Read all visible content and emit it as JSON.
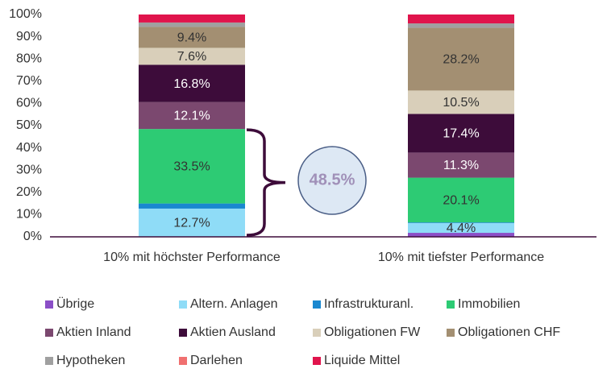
{
  "chart_data": {
    "type": "stacked-bar",
    "categories": [
      "10% mit höchster Performance",
      "10% mit tiefster Performance"
    ],
    "ylim": [
      0,
      100
    ],
    "yticks": [
      {
        "value": 0,
        "label": "0%"
      },
      {
        "value": 10,
        "label": "10%"
      },
      {
        "value": 20,
        "label": "20%"
      },
      {
        "value": 30,
        "label": "30%"
      },
      {
        "value": 40,
        "label": "40%"
      },
      {
        "value": 50,
        "label": "50%"
      },
      {
        "value": 60,
        "label": "60%"
      },
      {
        "value": 70,
        "label": "70%"
      },
      {
        "value": 80,
        "label": "80%"
      },
      {
        "value": 90,
        "label": "90%"
      },
      {
        "value": 100,
        "label": "100%"
      }
    ],
    "annotation": "48.5%",
    "series": [
      {
        "name": "Übrige",
        "color": "#8b4fc7",
        "values": [
          0,
          1.8
        ],
        "value_labels": [
          null,
          null
        ]
      },
      {
        "name": "Altern. Anlagen",
        "color": "#8fdcf7",
        "values": [
          12.7,
          4.4
        ],
        "value_labels": [
          "12.7%",
          "4.4%"
        ]
      },
      {
        "name": "Infrastrukturanl.",
        "color": "#1a88d0",
        "values": [
          2.3,
          0.3
        ],
        "value_labels": [
          null,
          null
        ]
      },
      {
        "name": "Immobilien",
        "color": "#2dcb74",
        "values": [
          33.5,
          20.1
        ],
        "value_labels": [
          "33.5%",
          "20.1%"
        ]
      },
      {
        "name": "Aktien Inland",
        "color": "#7b486f",
        "values": [
          12.1,
          11.3
        ],
        "value_labels": [
          "12.1%",
          "11.3%"
        ]
      },
      {
        "name": "Aktien Ausland",
        "color": "#3d0c3a",
        "values": [
          16.8,
          17.4
        ],
        "value_labels": [
          "16.8%",
          "17.4%"
        ]
      },
      {
        "name": "Obligationen FW",
        "color": "#d9cfba",
        "values": [
          7.6,
          10.5
        ],
        "value_labels": [
          "7.6%",
          "10.5%"
        ]
      },
      {
        "name": "Obligationen CHF",
        "color": "#a38f72",
        "values": [
          9.4,
          28.2
        ],
        "value_labels": [
          "9.4%",
          "28.2%"
        ]
      },
      {
        "name": "Hypotheken",
        "color": "#a0a0a0",
        "values": [
          2.0,
          2.0
        ],
        "value_labels": [
          null,
          null
        ]
      },
      {
        "name": "Darlehen",
        "color": "#f07070",
        "values": [
          0,
          0
        ],
        "value_labels": [
          null,
          null
        ]
      },
      {
        "name": "Liquide Mittel",
        "color": "#e0144c",
        "values": [
          3.6,
          4.0
        ],
        "value_labels": [
          null,
          null
        ]
      }
    ]
  }
}
